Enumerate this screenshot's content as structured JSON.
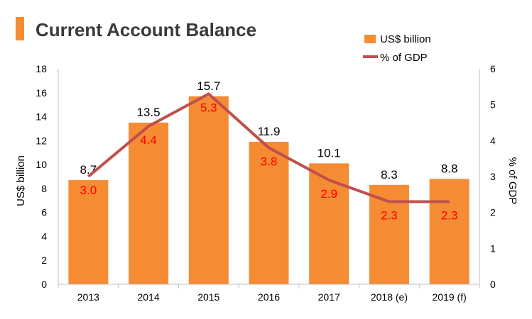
{
  "chart_data": {
    "type": "bar",
    "title": "Current Account Balance",
    "categories": [
      "2013",
      "2014",
      "2015",
      "2016",
      "2017",
      "2018 (e)",
      "2019 (f)"
    ],
    "series": [
      {
        "name": "US$ billion",
        "type": "bar",
        "axis": "left",
        "color": "#F58B33",
        "values": [
          8.7,
          13.5,
          15.7,
          11.9,
          10.1,
          8.3,
          8.8
        ],
        "labels": [
          "8.7",
          "13.5",
          "15.7",
          "11.9",
          "10.1",
          "8.3",
          "8.8"
        ]
      },
      {
        "name": "% of GDP",
        "type": "line",
        "axis": "right",
        "color": "#C0504D",
        "values": [
          3.0,
          4.4,
          5.3,
          3.8,
          2.9,
          2.3,
          2.3
        ],
        "labels": [
          "3.0",
          "4.4",
          "5.3",
          "3.8",
          "2.9",
          "2.3",
          "2.3"
        ],
        "label_color": "#FF0000"
      }
    ],
    "ylabel": "US$ billion",
    "ylim": [
      0,
      18
    ],
    "yticks": [
      "0",
      "2",
      "4",
      "6",
      "8",
      "10",
      "12",
      "14",
      "16",
      "18"
    ],
    "y2label": "% of GDP",
    "y2lim": [
      0,
      6
    ],
    "y2ticks": [
      "0",
      "1",
      "2",
      "3",
      "4",
      "5",
      "6"
    ],
    "grid": false,
    "legend_position": "top-right",
    "title_marker_color": "#F58B33"
  }
}
